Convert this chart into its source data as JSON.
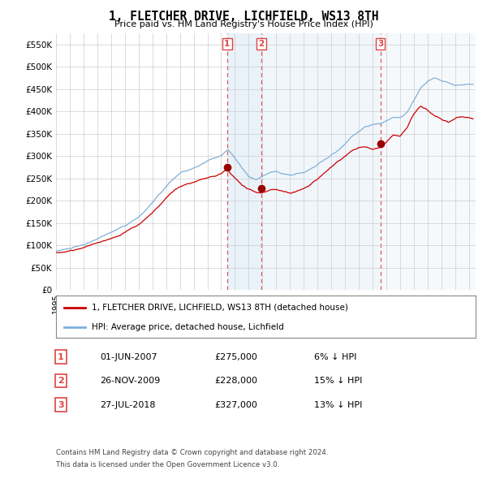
{
  "title": "1, FLETCHER DRIVE, LICHFIELD, WS13 8TH",
  "subtitle": "Price paid vs. HM Land Registry's House Price Index (HPI)",
  "ytick_values": [
    0,
    50000,
    100000,
    150000,
    200000,
    250000,
    300000,
    350000,
    400000,
    450000,
    500000,
    550000
  ],
  "ylim": [
    0,
    575000
  ],
  "xlim_start": 1995.0,
  "xlim_end": 2025.5,
  "hpi_color": "#7fb0d8",
  "hpi_shade_color": "#ddeaf5",
  "price_color": "#cc0000",
  "sale_marker_color": "#990000",
  "vline_color": "#dd4444",
  "background_color": "#ffffff",
  "grid_color": "#cccccc",
  "sales": [
    {
      "label": "1",
      "date_num": 2007.42,
      "price": 275000,
      "date_str": "01-JUN-2007",
      "pct": "6%",
      "dir": "↓"
    },
    {
      "label": "2",
      "date_num": 2009.9,
      "price": 228000,
      "date_str": "26-NOV-2009",
      "pct": "15%",
      "dir": "↓"
    },
    {
      "label": "3",
      "date_num": 2018.56,
      "price": 327000,
      "date_str": "27-JUL-2018",
      "pct": "13%",
      "dir": "↓"
    }
  ],
  "legend_property_label": "1, FLETCHER DRIVE, LICHFIELD, WS13 8TH (detached house)",
  "legend_hpi_label": "HPI: Average price, detached house, Lichfield",
  "footer1": "Contains HM Land Registry data © Crown copyright and database right 2024.",
  "footer2": "This data is licensed under the Open Government Licence v3.0."
}
